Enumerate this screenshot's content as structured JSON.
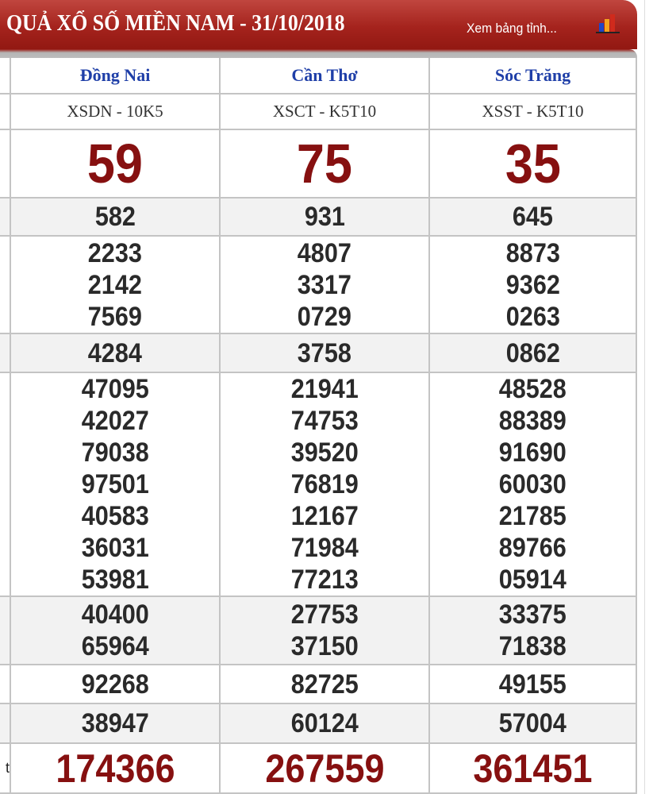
{
  "header": {
    "title": "QUẢ XỔ SỐ MIỀN NAM - 31/10/2018",
    "view_link": "Xem bảng tỉnh...",
    "icon": "bar-chart-icon"
  },
  "provinces": [
    {
      "name": "Đồng Nai",
      "code": "XSDN - 10K5"
    },
    {
      "name": "Cần Thơ",
      "code": "XSCT - K5T10"
    },
    {
      "name": "Sóc Trăng",
      "code": "XSST - K5T10"
    }
  ],
  "prizes": [
    {
      "key": "g8",
      "label": "",
      "values": [
        [
          "59"
        ],
        [
          "75"
        ],
        [
          "35"
        ]
      ]
    },
    {
      "key": "g7",
      "label": "",
      "values": [
        [
          "582"
        ],
        [
          "931"
        ],
        [
          "645"
        ]
      ]
    },
    {
      "key": "g6",
      "label": "",
      "values": [
        [
          "2233",
          "2142",
          "7569"
        ],
        [
          "4807",
          "3317",
          "0729"
        ],
        [
          "8873",
          "9362",
          "0263"
        ]
      ]
    },
    {
      "key": "g5",
      "label": "",
      "values": [
        [
          "4284"
        ],
        [
          "3758"
        ],
        [
          "0862"
        ]
      ]
    },
    {
      "key": "g4",
      "label": "",
      "values": [
        [
          "47095",
          "42027",
          "79038",
          "97501",
          "40583",
          "36031",
          "53981"
        ],
        [
          "21941",
          "74753",
          "39520",
          "76819",
          "12167",
          "71984",
          "77213"
        ],
        [
          "48528",
          "88389",
          "91690",
          "60030",
          "21785",
          "89766",
          "05914"
        ]
      ]
    },
    {
      "key": "g3",
      "label": "",
      "values": [
        [
          "40400",
          "65964"
        ],
        [
          "27753",
          "37150"
        ],
        [
          "33375",
          "71838"
        ]
      ]
    },
    {
      "key": "g2",
      "label": "",
      "values": [
        [
          "92268"
        ],
        [
          "82725"
        ],
        [
          "49155"
        ]
      ]
    },
    {
      "key": "g1",
      "label": "",
      "values": [
        [
          "38947"
        ],
        [
          "60124"
        ],
        [
          "57004"
        ]
      ]
    },
    {
      "key": "db",
      "label": "t",
      "values": [
        [
          "174366"
        ],
        [
          "267559"
        ],
        [
          "361451"
        ]
      ]
    }
  ],
  "colors": {
    "header": "#a5231d",
    "province": "#1f3fa8",
    "highlight": "#861010"
  }
}
